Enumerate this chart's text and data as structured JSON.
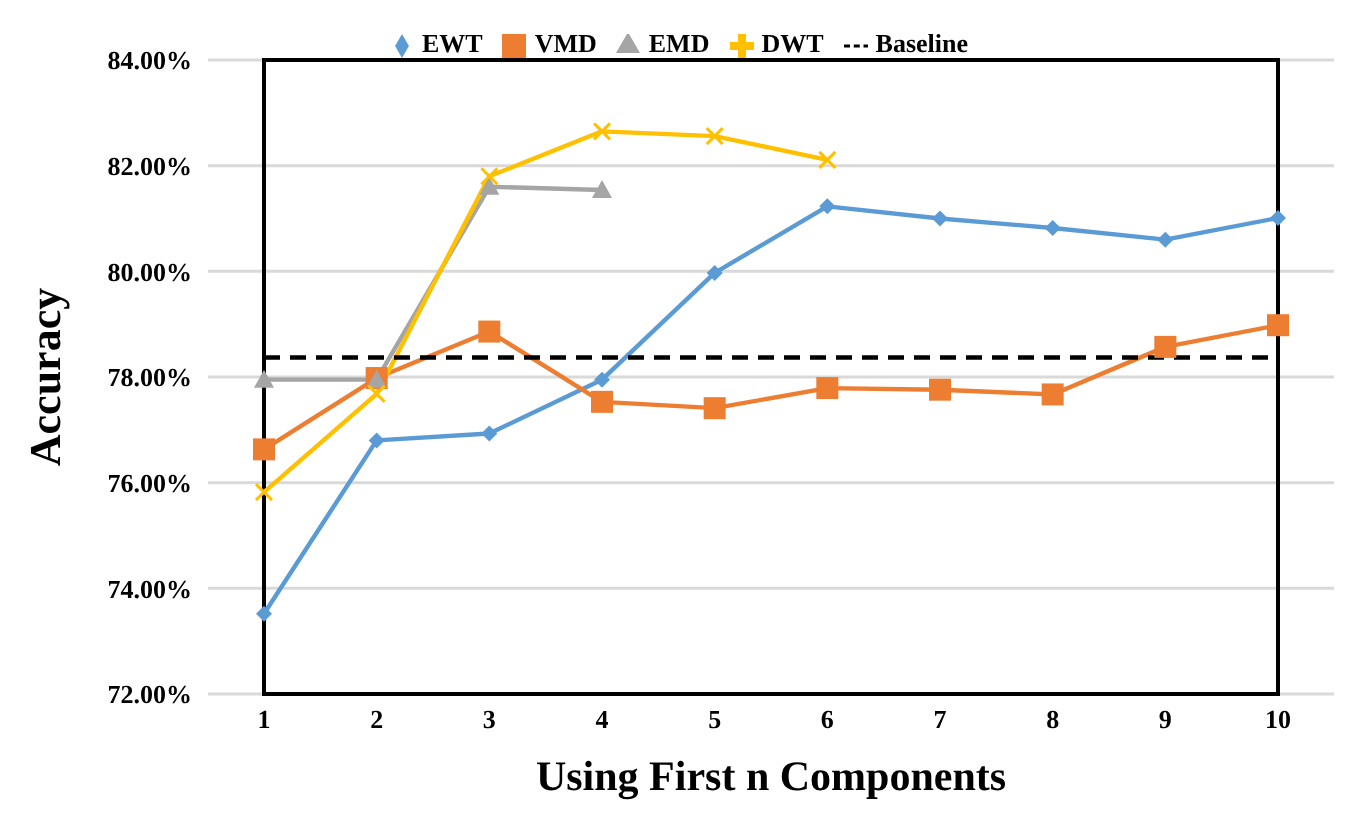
{
  "chart_data": {
    "type": "line",
    "xlabel": "Using First n Components",
    "ylabel": "Accuracy",
    "categories": [
      "1",
      "2",
      "3",
      "4",
      "5",
      "6",
      "7",
      "8",
      "9",
      "10"
    ],
    "ylim": [
      72,
      84
    ],
    "yticks": [
      {
        "value": 72,
        "label": "72.00%"
      },
      {
        "value": 74,
        "label": "74.00%"
      },
      {
        "value": 76,
        "label": "76.00%"
      },
      {
        "value": 78,
        "label": "78.00%"
      },
      {
        "value": 80,
        "label": "80.00%"
      },
      {
        "value": 82,
        "label": "82.00%"
      },
      {
        "value": 84,
        "label": "84.00%"
      }
    ],
    "grid": "y",
    "legend": "top",
    "series": [
      {
        "name": "EWT",
        "color": "#5b9bd5",
        "marker": "diamond",
        "values": [
          73.52,
          76.8,
          76.93,
          77.95,
          79.97,
          81.23,
          81.0,
          80.82,
          80.6,
          81.01
        ]
      },
      {
        "name": "VMD",
        "color": "#ed7d31",
        "marker": "square",
        "values": [
          76.63,
          77.98,
          78.86,
          77.53,
          77.41,
          77.79,
          77.76,
          77.67,
          78.57,
          78.98
        ]
      },
      {
        "name": "EMD",
        "color": "#a5a5a5",
        "marker": "triangle",
        "values": [
          77.95,
          77.95,
          81.6,
          81.54,
          null,
          null,
          null,
          null,
          null,
          null
        ]
      },
      {
        "name": "DWT",
        "color": "#ffc000",
        "marker": "cross",
        "values": [
          75.82,
          77.68,
          81.8,
          82.65,
          82.56,
          82.11,
          null,
          null,
          null,
          null
        ]
      },
      {
        "name": "Baseline",
        "color": "#000000",
        "marker": "none",
        "line_style": "dashed",
        "values": [
          78.37,
          78.37,
          78.37,
          78.37,
          78.37,
          78.37,
          78.37,
          78.37,
          78.37,
          78.37
        ]
      }
    ]
  }
}
